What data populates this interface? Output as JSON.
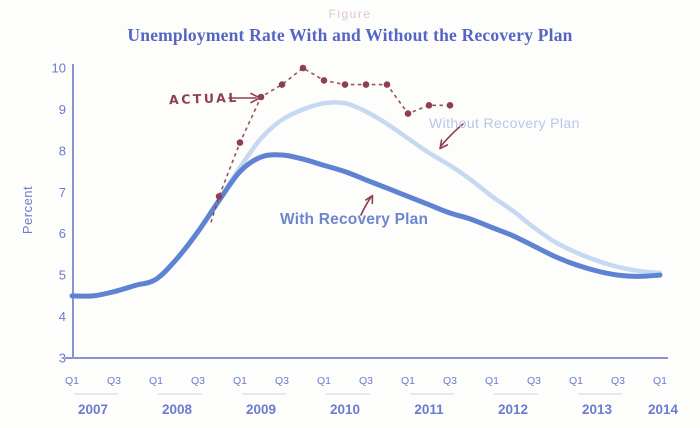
{
  "figure_label": "Figure",
  "chart_data": {
    "type": "line",
    "title": "Unemployment Rate With and Without the Recovery Plan",
    "ylabel": "Percent",
    "xlabel": "",
    "ylim": [
      3,
      10
    ],
    "y_ticks": [
      3,
      4,
      5,
      6,
      7,
      8,
      9,
      10
    ],
    "grid": false,
    "legend_position": "inline-labels",
    "x_quarter_tick_labels": [
      "Q1",
      "Q3"
    ],
    "x_years": [
      "2007",
      "2008",
      "2009",
      "2010",
      "2011",
      "2012",
      "2013",
      "2014"
    ],
    "x_range": "2007 Q1 to 2014 Q1, quarterly",
    "series": [
      {
        "name": "Without Recovery Plan",
        "label": "Without Recovery Plan",
        "type": "smooth-line",
        "color": "#c7d8f3",
        "width": 4.5,
        "x_start_quarter": "2007 Q1",
        "values_quarterly": [
          4.5,
          4.5,
          4.6,
          4.75,
          4.9,
          5.4,
          6.05,
          6.8,
          7.6,
          8.3,
          8.75,
          9.0,
          9.15,
          9.15,
          8.95,
          8.65,
          8.3,
          7.95,
          7.65,
          7.3,
          6.9,
          6.55,
          6.15,
          5.8,
          5.55,
          5.35,
          5.2,
          5.1,
          5.05
        ]
      },
      {
        "name": "With Recovery Plan",
        "label": "With Recovery Plan",
        "type": "smooth-line",
        "color": "#5d83d2",
        "width": 5,
        "x_start_quarter": "2007 Q1",
        "values_quarterly": [
          4.5,
          4.5,
          4.6,
          4.75,
          4.9,
          5.4,
          6.05,
          6.8,
          7.5,
          7.85,
          7.9,
          7.8,
          7.65,
          7.5,
          7.3,
          7.1,
          6.9,
          6.7,
          6.5,
          6.35,
          6.15,
          5.95,
          5.7,
          5.45,
          5.25,
          5.1,
          5.0,
          4.97,
          5.0
        ]
      },
      {
        "name": "Actual",
        "label": "ACTUAL",
        "type": "dashed-dots",
        "color": "#8e3f54",
        "points": [
          {
            "quarter": "2008 Q4",
            "value": 6.9
          },
          {
            "quarter": "2009 Q1",
            "value": 8.2
          },
          {
            "quarter": "2009 Q2",
            "value": 9.3
          },
          {
            "quarter": "2009 Q3",
            "value": 9.6
          },
          {
            "quarter": "2009 Q4",
            "value": 10.0
          },
          {
            "quarter": "2010 Q1",
            "value": 9.7
          },
          {
            "quarter": "2010 Q2",
            "value": 9.6
          },
          {
            "quarter": "2010 Q3",
            "value": 9.6
          },
          {
            "quarter": "2010 Q4",
            "value": 9.6
          },
          {
            "quarter": "2011 Q1",
            "value": 8.9
          },
          {
            "quarter": "2011 Q2",
            "value": 9.1
          },
          {
            "quarter": "2011 Q3",
            "value": 9.1
          }
        ]
      }
    ],
    "annotations": [
      {
        "text": "ACTUAL",
        "points_to": "Actual dashed series",
        "arrow": "right"
      },
      {
        "text": "Without Recovery Plan",
        "points_to": "light blue projection line",
        "arrow": "down-left"
      },
      {
        "text": "With Recovery Plan",
        "points_to": "dark blue projection line",
        "arrow": "up-right"
      }
    ]
  },
  "colors": {
    "background": "#fdfdfb",
    "title_text": "#5565c5",
    "axis_line": "#8a93cd",
    "tick_text": "#6b7bce",
    "without_line": "#c7d8f3",
    "with_line": "#5d83d2",
    "without_label_text": "#b5c8ea",
    "with_label_text": "#6e86cd",
    "actual_red": "#8e3f54",
    "figure_label_text": "#d8bcc8",
    "year_bracket": "#dce1ec"
  }
}
